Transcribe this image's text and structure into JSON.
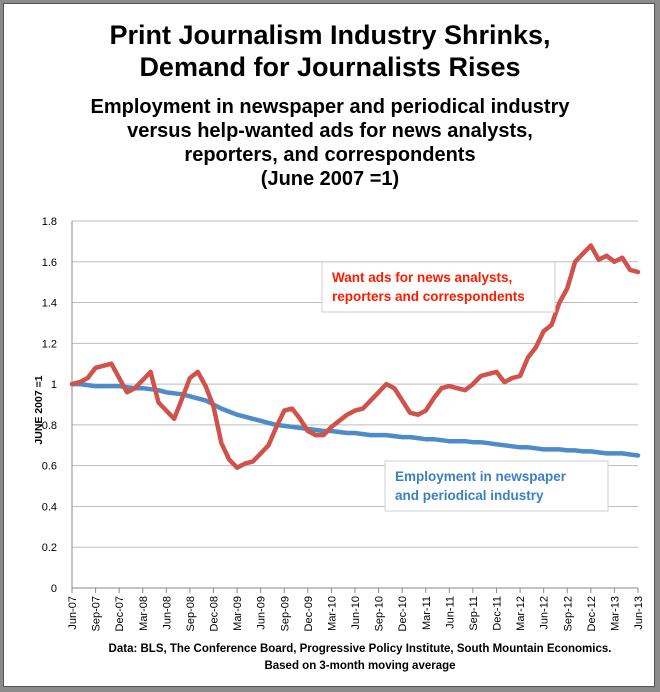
{
  "chart_data": {
    "type": "line",
    "title": "Print Journalism Industry Shrinks,",
    "title_line2": "Demand for Journalists Rises",
    "subtitle_lines": [
      "Employment in newspaper and periodical industry",
      "versus help-wanted ads for news analysts,",
      "reporters, and correspondents",
      "(June 2007 =1)"
    ],
    "ylabel": "JUNE 2007 =1",
    "xlabel": "",
    "ylim": [
      0,
      1.8
    ],
    "yticks": [
      "0",
      "0.2",
      "0.4",
      "0.6",
      "0.8",
      "1",
      "1.2",
      "1.4",
      "1.6",
      "1.8"
    ],
    "yticks_values": [
      0,
      0.2,
      0.4,
      0.6,
      0.8,
      1.0,
      1.2,
      1.4,
      1.6,
      1.8
    ],
    "xtick_labels": [
      "Jun-07",
      "Sep-07",
      "Dec-07",
      "Mar-08",
      "Jun-08",
      "Sep-08",
      "Dec-08",
      "Mar-09",
      "Jun-09",
      "Sep-09",
      "Dec-09",
      "Mar-10",
      "Jun-10",
      "Sep-10",
      "Dec-10",
      "Mar-11",
      "Jun-11",
      "Sep-11",
      "Dec-11",
      "Mar-12",
      "Jun-12",
      "Sep-12",
      "Dec-12",
      "Mar-13",
      "Jun-13"
    ],
    "x_range": [
      "Jun-07",
      "Jun-13"
    ],
    "x_step": "monthly",
    "grid": true,
    "series": [
      {
        "name": "Want ads for news analysts, reporters and correspondents",
        "label_lines": [
          "Want ads for news analysts,",
          "reporters and correspondents"
        ],
        "color": "#d0524b",
        "label_color": "#ff1a00",
        "values": [
          1.0,
          1.01,
          1.03,
          1.08,
          1.09,
          1.1,
          1.03,
          0.96,
          0.98,
          1.02,
          1.06,
          0.91,
          0.87,
          0.83,
          0.93,
          1.03,
          1.06,
          0.99,
          0.89,
          0.71,
          0.63,
          0.59,
          0.61,
          0.62,
          0.66,
          0.7,
          0.79,
          0.87,
          0.88,
          0.83,
          0.77,
          0.75,
          0.75,
          0.79,
          0.82,
          0.85,
          0.87,
          0.88,
          0.92,
          0.96,
          1.0,
          0.98,
          0.92,
          0.86,
          0.85,
          0.87,
          0.93,
          0.98,
          0.99,
          0.98,
          0.97,
          1.0,
          1.04,
          1.05,
          1.06,
          1.01,
          1.03,
          1.04,
          1.13,
          1.18,
          1.26,
          1.29,
          1.4,
          1.47,
          1.6,
          1.64,
          1.68,
          1.61,
          1.63,
          1.6,
          1.62,
          1.56,
          1.55
        ]
      },
      {
        "name": "Employment in newspaper and periodical industry",
        "label_lines": [
          "Employment in newspaper",
          "and periodical industry"
        ],
        "color": "#4f8bc9",
        "label_color": "#3d7fc4",
        "values": [
          1.0,
          1.0,
          0.995,
          0.99,
          0.99,
          0.99,
          0.99,
          0.985,
          0.98,
          0.98,
          0.975,
          0.97,
          0.96,
          0.955,
          0.95,
          0.94,
          0.93,
          0.92,
          0.9,
          0.88,
          0.865,
          0.85,
          0.84,
          0.83,
          0.82,
          0.81,
          0.8,
          0.795,
          0.79,
          0.785,
          0.78,
          0.775,
          0.77,
          0.77,
          0.765,
          0.76,
          0.76,
          0.755,
          0.75,
          0.75,
          0.75,
          0.745,
          0.74,
          0.74,
          0.735,
          0.73,
          0.73,
          0.725,
          0.72,
          0.72,
          0.72,
          0.715,
          0.715,
          0.71,
          0.705,
          0.7,
          0.695,
          0.69,
          0.69,
          0.685,
          0.68,
          0.68,
          0.68,
          0.675,
          0.675,
          0.67,
          0.67,
          0.665,
          0.66,
          0.66,
          0.66,
          0.655,
          0.65
        ]
      }
    ]
  },
  "footer": {
    "line1": "Data: BLS, The Conference Board, Progressive Policy Institute, South Mountain Economics.",
    "line2": "Based on 3-month moving average"
  }
}
